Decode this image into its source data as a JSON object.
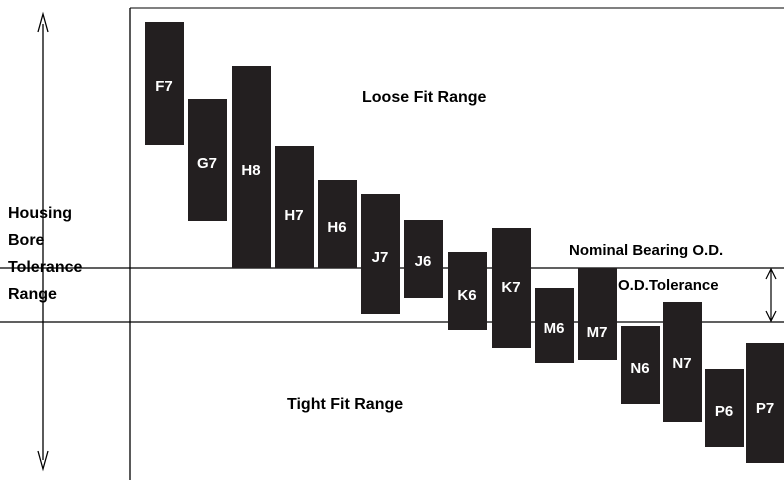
{
  "left_label_lines": [
    "Housing",
    "Bore",
    "Tolerance",
    "Range"
  ],
  "loose_fit_label": "Loose Fit Range",
  "tight_fit_label": "Tight Fit Range",
  "nominal_label": "Nominal Bearing O.D.",
  "od_tolerance_label": "O.D.Tolerance",
  "colors": {
    "bar": "#231f20",
    "bar_text": "#ffffff",
    "line": "#000000",
    "text": "#000000",
    "background": "#ffffff"
  },
  "tolerance_zones": [
    {
      "name": "F7"
    },
    {
      "name": "G7"
    },
    {
      "name": "H8"
    },
    {
      "name": "H7"
    },
    {
      "name": "H6"
    },
    {
      "name": "J7"
    },
    {
      "name": "J6"
    },
    {
      "name": "K6"
    },
    {
      "name": "K7"
    },
    {
      "name": "M6"
    },
    {
      "name": "M7"
    },
    {
      "name": "N6"
    },
    {
      "name": "N7"
    },
    {
      "name": "P6"
    },
    {
      "name": "P7"
    }
  ]
}
